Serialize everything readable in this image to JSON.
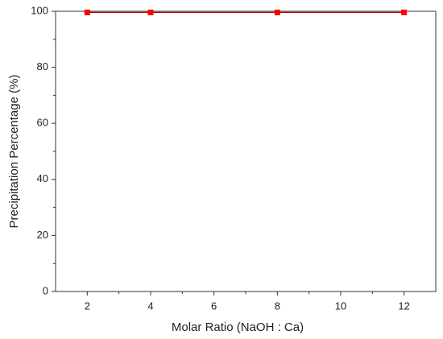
{
  "chart_data": {
    "type": "line",
    "x_label": "Molar Ratio (NaOH : Ca)",
    "y_label": "Precipitation Percentage (%)",
    "x": [
      2,
      4,
      8,
      12
    ],
    "values": [
      99.6,
      99.6,
      99.6,
      99.6
    ],
    "color": "#c00000",
    "marker_color": "#ff0000",
    "xlim": [
      1,
      13
    ],
    "xticks": [
      2,
      4,
      6,
      8,
      10,
      12
    ],
    "ylim": [
      0,
      100
    ],
    "yticks": [
      0,
      20,
      40,
      60,
      80,
      100
    ]
  }
}
